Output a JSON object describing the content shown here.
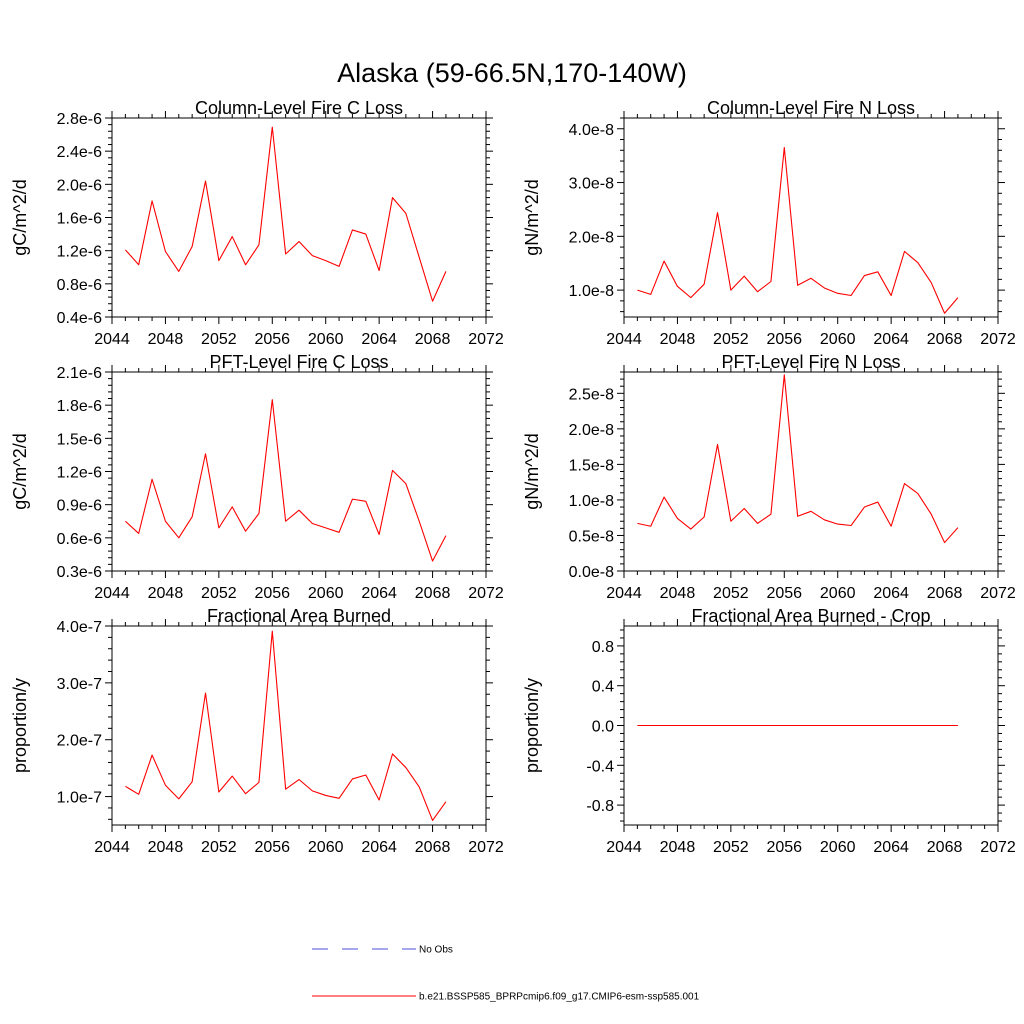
{
  "title": "Alaska (59-66.5N,170-140W)",
  "colors": {
    "model": "#ff0000",
    "obs": "#4d4dd9",
    "axis": "#000000"
  },
  "legend": [
    {
      "label": "No Obs",
      "style": "dashed",
      "color": "#4d4dd9"
    },
    {
      "label": "b.e21.BSSP585_BPRPcmip6.f09_g17.CMIP6-esm-ssp585.001",
      "style": "solid",
      "color": "#ff0000"
    }
  ],
  "chart_data": [
    {
      "type": "line",
      "title": "Column-Level Fire C Loss",
      "ylabel": "gC/m^2/d",
      "xlim": [
        2044,
        2072
      ],
      "ylim": [
        4e-07,
        2.8e-06
      ],
      "xticks": [
        2044,
        2048,
        2052,
        2056,
        2060,
        2064,
        2068,
        2072
      ],
      "yticks": [
        4e-07,
        8e-07,
        1.2e-06,
        1.6e-06,
        2e-06,
        2.4e-06,
        2.8e-06
      ],
      "yticklabels": [
        "0.4e-6",
        "0.8e-6",
        "1.2e-6",
        "1.6e-6",
        "2.0e-6",
        "2.4e-6",
        "2.8e-6"
      ],
      "x": [
        2045,
        2046,
        2047,
        2048,
        2049,
        2050,
        2051,
        2052,
        2053,
        2054,
        2055,
        2056,
        2057,
        2058,
        2059,
        2060,
        2061,
        2062,
        2063,
        2064,
        2065,
        2066,
        2067,
        2068,
        2069
      ],
      "series": [
        {
          "values": [
            1.21e-06,
            1.03e-06,
            1.8e-06,
            1.19e-06,
            9.5e-07,
            1.25e-06,
            2.04e-06,
            1.08e-06,
            1.37e-06,
            1.03e-06,
            1.27e-06,
            2.69e-06,
            1.16e-06,
            1.31e-06,
            1.14e-06,
            1.08e-06,
            1.01e-06,
            1.45e-06,
            1.4e-06,
            9.6e-07,
            1.84e-06,
            1.65e-06,
            1.12e-06,
            5.9e-07,
            9.5e-07
          ]
        }
      ]
    },
    {
      "type": "line",
      "title": "Column-Level Fire N Loss",
      "ylabel": "gN/m^2/d",
      "xlim": [
        2044,
        2072
      ],
      "ylim": [
        5e-09,
        4.2e-08
      ],
      "xticks": [
        2044,
        2048,
        2052,
        2056,
        2060,
        2064,
        2068,
        2072
      ],
      "yticks": [
        1e-08,
        2e-08,
        3e-08,
        4e-08
      ],
      "yticklabels": [
        "1.0e-8",
        "2.0e-8",
        "3.0e-8",
        "4.0e-8"
      ],
      "x": [
        2045,
        2046,
        2047,
        2048,
        2049,
        2050,
        2051,
        2052,
        2053,
        2054,
        2055,
        2056,
        2057,
        2058,
        2059,
        2060,
        2061,
        2062,
        2063,
        2064,
        2065,
        2066,
        2067,
        2068,
        2069
      ],
      "series": [
        {
          "values": [
            1e-08,
            9.2e-09,
            1.54e-08,
            1.07e-08,
            8.6e-09,
            1.11e-08,
            2.44e-08,
            1e-08,
            1.26e-08,
            9.7e-09,
            1.16e-08,
            3.65e-08,
            1.09e-08,
            1.22e-08,
            1.04e-08,
            9.4e-09,
            9e-09,
            1.27e-08,
            1.34e-08,
            9e-09,
            1.72e-08,
            1.51e-08,
            1.14e-08,
            5.7e-09,
            8.6e-09
          ]
        }
      ]
    },
    {
      "type": "line",
      "title": "PFT-Level Fire C Loss",
      "ylabel": "gC/m^2/d",
      "xlim": [
        2044,
        2072
      ],
      "ylim": [
        3e-07,
        2.1e-06
      ],
      "xticks": [
        2044,
        2048,
        2052,
        2056,
        2060,
        2064,
        2068,
        2072
      ],
      "yticks": [
        3e-07,
        6e-07,
        9e-07,
        1.2e-06,
        1.5e-06,
        1.8e-06,
        2.1e-06
      ],
      "yticklabels": [
        "0.3e-6",
        "0.6e-6",
        "0.9e-6",
        "1.2e-6",
        "1.5e-6",
        "1.8e-6",
        "2.1e-6"
      ],
      "x": [
        2045,
        2046,
        2047,
        2048,
        2049,
        2050,
        2051,
        2052,
        2053,
        2054,
        2055,
        2056,
        2057,
        2058,
        2059,
        2060,
        2061,
        2062,
        2063,
        2064,
        2065,
        2066,
        2067,
        2068,
        2069
      ],
      "series": [
        {
          "values": [
            7.5e-07,
            6.4e-07,
            1.13e-06,
            7.5e-07,
            6e-07,
            7.9e-07,
            1.36e-06,
            6.9e-07,
            8.8e-07,
            6.6e-07,
            8.2e-07,
            1.85e-06,
            7.5e-07,
            8.5e-07,
            7.3e-07,
            6.9e-07,
            6.5e-07,
            9.5e-07,
            9.3e-07,
            6.3e-07,
            1.21e-06,
            1.09e-06,
            7.5e-07,
            3.9e-07,
            6.2e-07
          ]
        }
      ]
    },
    {
      "type": "line",
      "title": "PFT-Level Fire N Loss",
      "ylabel": "gN/m^2/d",
      "xlim": [
        2044,
        2072
      ],
      "ylim": [
        0.0,
        2.8e-08
      ],
      "xticks": [
        2044,
        2048,
        2052,
        2056,
        2060,
        2064,
        2068,
        2072
      ],
      "yticks": [
        0.0,
        5e-09,
        1e-08,
        1.5e-08,
        2e-08,
        2.5e-08
      ],
      "yticklabels": [
        "0.0e-8",
        "0.5e-8",
        "1.0e-8",
        "1.5e-8",
        "2.0e-8",
        "2.5e-8"
      ],
      "x": [
        2045,
        2046,
        2047,
        2048,
        2049,
        2050,
        2051,
        2052,
        2053,
        2054,
        2055,
        2056,
        2057,
        2058,
        2059,
        2060,
        2061,
        2062,
        2063,
        2064,
        2065,
        2066,
        2067,
        2068,
        2069
      ],
      "series": [
        {
          "values": [
            6.7e-09,
            6.3e-09,
            1.04e-08,
            7.4e-09,
            5.9e-09,
            7.6e-09,
            1.78e-08,
            7e-09,
            8.8e-09,
            6.7e-09,
            8e-09,
            2.76e-08,
            7.7e-09,
            8.4e-09,
            7.2e-09,
            6.6e-09,
            6.4e-09,
            9e-09,
            9.7e-09,
            6.3e-09,
            1.23e-08,
            1.09e-08,
            8e-09,
            4e-09,
            6.1e-09
          ]
        }
      ]
    },
    {
      "type": "line",
      "title": "Fractional Area Burned",
      "ylabel": "proportion/y",
      "xlim": [
        2044,
        2072
      ],
      "ylim": [
        5e-08,
        4e-07
      ],
      "xticks": [
        2044,
        2048,
        2052,
        2056,
        2060,
        2064,
        2068,
        2072
      ],
      "yticks": [
        1e-07,
        2e-07,
        3e-07,
        4e-07
      ],
      "yticklabels": [
        "1.0e-7",
        "2.0e-7",
        "3.0e-7",
        "4.0e-7"
      ],
      "x": [
        2045,
        2046,
        2047,
        2048,
        2049,
        2050,
        2051,
        2052,
        2053,
        2054,
        2055,
        2056,
        2057,
        2058,
        2059,
        2060,
        2061,
        2062,
        2063,
        2064,
        2065,
        2066,
        2067,
        2068,
        2069
      ],
      "series": [
        {
          "values": [
            1.18e-07,
            1.04e-07,
            1.73e-07,
            1.2e-07,
            9.6e-08,
            1.26e-07,
            2.82e-07,
            1.08e-07,
            1.36e-07,
            1.05e-07,
            1.25e-07,
            3.91e-07,
            1.13e-07,
            1.3e-07,
            1.1e-07,
            1.02e-07,
            9.7e-08,
            1.31e-07,
            1.38e-07,
            9.4e-08,
            1.75e-07,
            1.51e-07,
            1.17e-07,
            5.8e-08,
            9.1e-08
          ]
        }
      ]
    },
    {
      "type": "line",
      "title": "Fractional Area Burned - Crop",
      "ylabel": "proportion/y",
      "xlim": [
        2044,
        2072
      ],
      "ylim": [
        -1.0,
        1.0
      ],
      "xticks": [
        2044,
        2048,
        2052,
        2056,
        2060,
        2064,
        2068,
        2072
      ],
      "yticks": [
        -0.8,
        -0.4,
        0.0,
        0.4,
        0.8
      ],
      "yticklabels": [
        "-0.8",
        "-0.4",
        "0.0",
        "0.4",
        "0.8"
      ],
      "x": [
        2045,
        2046,
        2047,
        2048,
        2049,
        2050,
        2051,
        2052,
        2053,
        2054,
        2055,
        2056,
        2057,
        2058,
        2059,
        2060,
        2061,
        2062,
        2063,
        2064,
        2065,
        2066,
        2067,
        2068,
        2069
      ],
      "series": [
        {
          "values": [
            0,
            0,
            0,
            0,
            0,
            0,
            0,
            0,
            0,
            0,
            0,
            0,
            0,
            0,
            0,
            0,
            0,
            0,
            0,
            0,
            0,
            0,
            0,
            0,
            0
          ]
        }
      ]
    }
  ]
}
